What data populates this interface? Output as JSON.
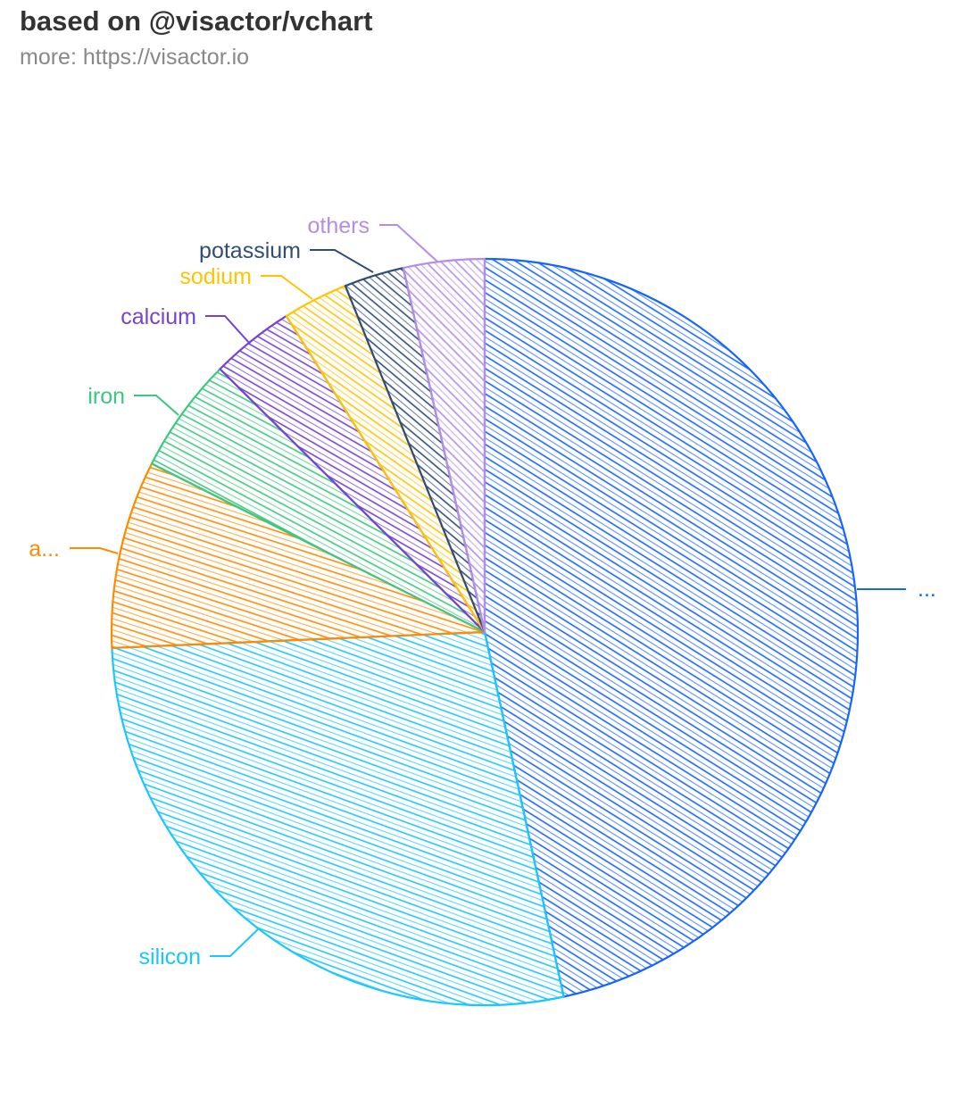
{
  "title": "based on @visactor/vchart",
  "subtitle": "more: https://visactor.io",
  "chart_data": {
    "type": "pie",
    "style": "sketch-hatched",
    "categories": [
      "...",
      "silicon",
      "a...",
      "iron",
      "calcium",
      "sodium",
      "potassium",
      "others"
    ],
    "values": [
      46.6,
      27.72,
      8.13,
      5,
      3.63,
      2.83,
      2.59,
      3.5
    ],
    "colors": [
      "#1664FF",
      "#1AC6FF",
      "#FF8A00",
      "#3CC780",
      "#7442D4",
      "#FFC400",
      "#304D77",
      "#B48DEB"
    ],
    "start_angle": "top, clockwise",
    "legend": "none"
  }
}
